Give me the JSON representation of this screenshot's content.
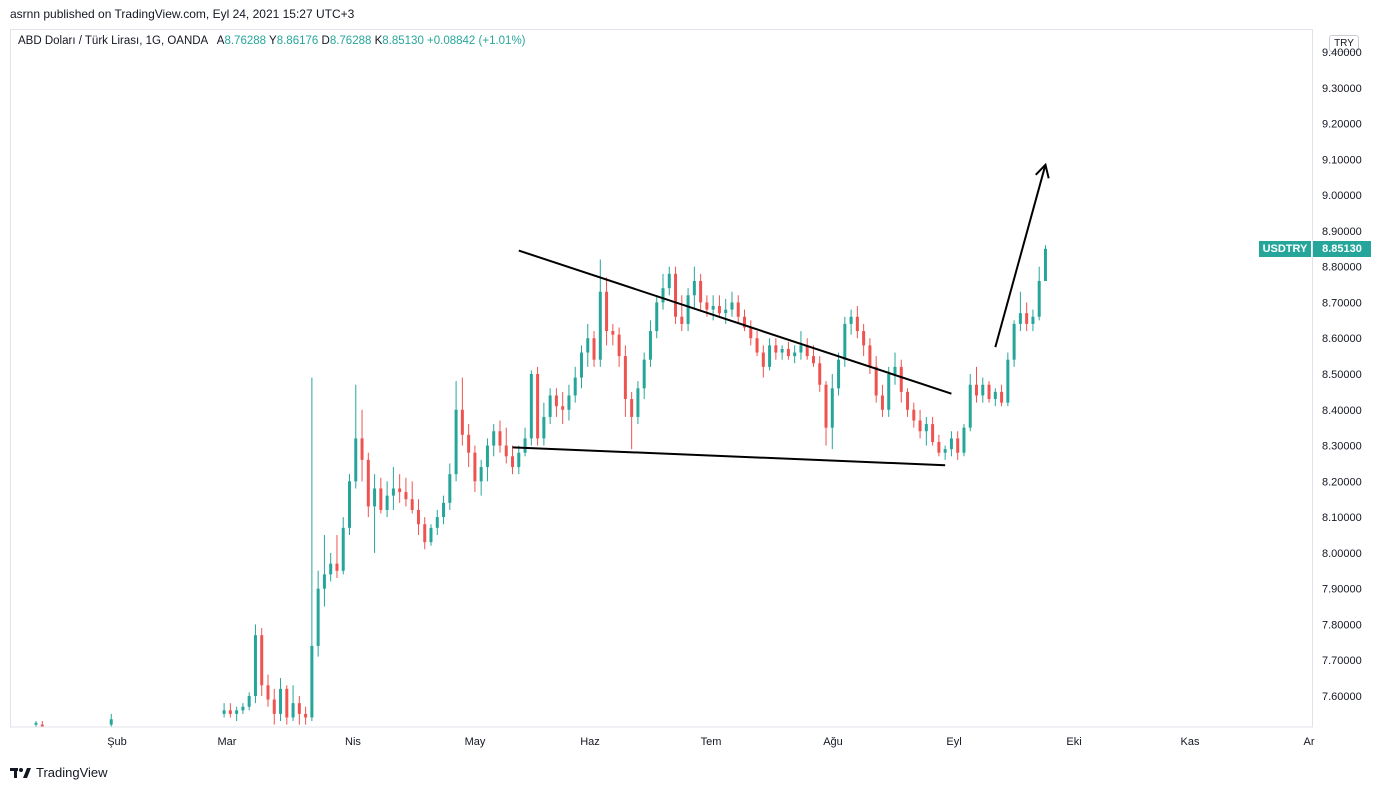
{
  "header": {
    "published": "asrnn published on TradingView.com, Eyl 24, 2021 15:27 UTC+3"
  },
  "legend": {
    "symbol": "ABD Doları / Türk Lirası, 1G, OANDA",
    "open_label": "A",
    "open": "8.76288",
    "high_label": "Y",
    "high": "8.86176",
    "low_label": "D",
    "low": "8.76288",
    "close_label": "K",
    "close": "8.85130",
    "change": "+0.08842 (+1.01%)"
  },
  "currency_button": "TRY",
  "price_badge": {
    "name": "USDTRY",
    "value": "8.85130"
  },
  "footer": {
    "brand": "TradingView"
  },
  "colors": {
    "up": "#26a69a",
    "down": "#ef5350",
    "badge": "#26a69a",
    "drawing": "#000000"
  },
  "chart_data": {
    "type": "candlestick",
    "y_ticks": [
      "9.40000",
      "9.30000",
      "9.20000",
      "9.10000",
      "9.00000",
      "8.90000",
      "8.80000",
      "8.70000",
      "8.60000",
      "8.50000",
      "8.40000",
      "8.30000",
      "8.20000",
      "8.10000",
      "8.00000",
      "7.90000",
      "7.80000",
      "7.70000",
      "7.60000"
    ],
    "x_ticks": [
      "Şub",
      "Mar",
      "Nis",
      "May",
      "Haz",
      "Tem",
      "Ağu",
      "Eyl",
      "Eki",
      "Kas",
      "Ar"
    ],
    "ylim": [
      7.52,
      9.45
    ],
    "grid": false,
    "last_price": 8.8513,
    "candles": [
      [
        0,
        7.52,
        7.53,
        7.51,
        7.525
      ],
      [
        2,
        7.52,
        7.53,
        7.51,
        7.515
      ],
      [
        24,
        7.52,
        7.55,
        7.51,
        7.535
      ],
      [
        60,
        7.55,
        7.58,
        7.54,
        7.56
      ],
      [
        62,
        7.56,
        7.58,
        7.54,
        7.55
      ],
      [
        64,
        7.55,
        7.57,
        7.53,
        7.56
      ],
      [
        66,
        7.56,
        7.58,
        7.55,
        7.57
      ],
      [
        68,
        7.57,
        7.61,
        7.56,
        7.6
      ],
      [
        70,
        7.6,
        7.8,
        7.58,
        7.77
      ],
      [
        72,
        7.77,
        7.79,
        7.6,
        7.63
      ],
      [
        74,
        7.63,
        7.66,
        7.57,
        7.59
      ],
      [
        76,
        7.59,
        7.62,
        7.52,
        7.55
      ],
      [
        78,
        7.55,
        7.65,
        7.53,
        7.62
      ],
      [
        80,
        7.62,
        7.63,
        7.52,
        7.54
      ],
      [
        82,
        7.54,
        7.63,
        7.53,
        7.58
      ],
      [
        84,
        7.58,
        7.6,
        7.52,
        7.55
      ],
      [
        86,
        7.55,
        7.57,
        7.52,
        7.54
      ],
      [
        88,
        7.54,
        8.49,
        7.53,
        7.74
      ],
      [
        90,
        7.74,
        7.95,
        7.71,
        7.9
      ],
      [
        92,
        7.9,
        8.05,
        7.85,
        7.94
      ],
      [
        94,
        7.94,
        8.0,
        7.92,
        7.97
      ],
      [
        96,
        7.97,
        8.05,
        7.93,
        7.95
      ],
      [
        98,
        7.95,
        8.1,
        7.94,
        8.07
      ],
      [
        100,
        8.07,
        8.22,
        8.05,
        8.2
      ],
      [
        102,
        8.2,
        8.47,
        8.18,
        8.32
      ],
      [
        104,
        8.32,
        8.4,
        8.2,
        8.26
      ],
      [
        106,
        8.26,
        8.28,
        8.1,
        8.13
      ],
      [
        108,
        8.13,
        8.22,
        8.0,
        8.18
      ],
      [
        110,
        8.18,
        8.21,
        8.11,
        8.12
      ],
      [
        112,
        8.12,
        8.2,
        8.1,
        8.16
      ],
      [
        114,
        8.16,
        8.24,
        8.12,
        8.18
      ],
      [
        116,
        8.18,
        8.22,
        8.14,
        8.17
      ],
      [
        118,
        8.17,
        8.21,
        8.13,
        8.15
      ],
      [
        120,
        8.15,
        8.2,
        8.11,
        8.12
      ],
      [
        122,
        8.12,
        8.15,
        8.05,
        8.08
      ],
      [
        124,
        8.08,
        8.1,
        8.01,
        8.03
      ],
      [
        126,
        8.03,
        8.08,
        8.02,
        8.07
      ],
      [
        128,
        8.07,
        8.12,
        8.05,
        8.1
      ],
      [
        130,
        8.1,
        8.16,
        8.08,
        8.14
      ],
      [
        132,
        8.14,
        8.25,
        8.12,
        8.22
      ],
      [
        134,
        8.22,
        8.48,
        8.2,
        8.4
      ],
      [
        136,
        8.4,
        8.49,
        8.3,
        8.33
      ],
      [
        138,
        8.33,
        8.36,
        8.24,
        8.28
      ],
      [
        140,
        8.28,
        8.3,
        8.17,
        8.2
      ],
      [
        142,
        8.2,
        8.26,
        8.16,
        8.24
      ],
      [
        144,
        8.24,
        8.32,
        8.2,
        8.3
      ],
      [
        146,
        8.3,
        8.36,
        8.27,
        8.34
      ],
      [
        148,
        8.34,
        8.37,
        8.28,
        8.3
      ],
      [
        150,
        8.3,
        8.35,
        8.25,
        8.27
      ],
      [
        152,
        8.27,
        8.3,
        8.22,
        8.24
      ],
      [
        154,
        8.24,
        8.3,
        8.22,
        8.28
      ],
      [
        156,
        8.28,
        8.35,
        8.27,
        8.32
      ],
      [
        158,
        8.32,
        8.51,
        8.3,
        8.5
      ],
      [
        160,
        8.5,
        8.52,
        8.3,
        8.32
      ],
      [
        162,
        8.32,
        8.42,
        8.3,
        8.38
      ],
      [
        164,
        8.38,
        8.46,
        8.36,
        8.44
      ],
      [
        166,
        8.44,
        8.46,
        8.38,
        8.41
      ],
      [
        168,
        8.41,
        8.45,
        8.36,
        8.4
      ],
      [
        170,
        8.4,
        8.47,
        8.37,
        8.44
      ],
      [
        172,
        8.44,
        8.52,
        8.42,
        8.49
      ],
      [
        174,
        8.49,
        8.58,
        8.46,
        8.56
      ],
      [
        176,
        8.56,
        8.64,
        8.52,
        8.6
      ],
      [
        178,
        8.6,
        8.62,
        8.52,
        8.54
      ],
      [
        180,
        8.54,
        8.82,
        8.52,
        8.73
      ],
      [
        182,
        8.73,
        8.77,
        8.58,
        8.62
      ],
      [
        184,
        8.62,
        8.64,
        8.58,
        8.61
      ],
      [
        186,
        8.61,
        8.63,
        8.52,
        8.55
      ],
      [
        188,
        8.55,
        8.58,
        8.38,
        8.43
      ],
      [
        190,
        8.43,
        8.45,
        8.29,
        8.38
      ],
      [
        192,
        8.38,
        8.48,
        8.36,
        8.46
      ],
      [
        194,
        8.46,
        8.56,
        8.43,
        8.54
      ],
      [
        196,
        8.54,
        8.65,
        8.52,
        8.62
      ],
      [
        198,
        8.62,
        8.72,
        8.6,
        8.7
      ],
      [
        200,
        8.7,
        8.78,
        8.68,
        8.74
      ],
      [
        202,
        8.74,
        8.8,
        8.72,
        8.78
      ],
      [
        204,
        8.78,
        8.8,
        8.64,
        8.66
      ],
      [
        206,
        8.66,
        8.72,
        8.62,
        8.64
      ],
      [
        208,
        8.64,
        8.74,
        8.62,
        8.72
      ],
      [
        210,
        8.72,
        8.8,
        8.68,
        8.76
      ],
      [
        212,
        8.76,
        8.78,
        8.68,
        8.7
      ],
      [
        214,
        8.7,
        8.72,
        8.66,
        8.68
      ],
      [
        216,
        8.68,
        8.72,
        8.65,
        8.69
      ],
      [
        218,
        8.69,
        8.72,
        8.66,
        8.67
      ],
      [
        220,
        8.67,
        8.71,
        8.64,
        8.68
      ],
      [
        222,
        8.68,
        8.73,
        8.66,
        8.7
      ],
      [
        224,
        8.7,
        8.72,
        8.64,
        8.66
      ],
      [
        226,
        8.66,
        8.68,
        8.62,
        8.63
      ],
      [
        228,
        8.63,
        8.65,
        8.58,
        8.6
      ],
      [
        230,
        8.6,
        8.62,
        8.55,
        8.56
      ],
      [
        232,
        8.56,
        8.58,
        8.49,
        8.52
      ],
      [
        234,
        8.52,
        8.6,
        8.51,
        8.58
      ],
      [
        236,
        8.58,
        8.6,
        8.54,
        8.56
      ],
      [
        238,
        8.56,
        8.58,
        8.54,
        8.57
      ],
      [
        240,
        8.57,
        8.59,
        8.54,
        8.55
      ],
      [
        242,
        8.55,
        8.58,
        8.53,
        8.56
      ],
      [
        244,
        8.56,
        8.62,
        8.54,
        8.58
      ],
      [
        246,
        8.58,
        8.6,
        8.54,
        8.55
      ],
      [
        248,
        8.55,
        8.58,
        8.52,
        8.53
      ],
      [
        250,
        8.53,
        8.55,
        8.45,
        8.47
      ],
      [
        252,
        8.47,
        8.48,
        8.3,
        8.35
      ],
      [
        254,
        8.35,
        8.5,
        8.29,
        8.46
      ],
      [
        256,
        8.46,
        8.56,
        8.44,
        8.54
      ],
      [
        258,
        8.54,
        8.66,
        8.52,
        8.64
      ],
      [
        260,
        8.64,
        8.68,
        8.61,
        8.66
      ],
      [
        262,
        8.66,
        8.69,
        8.6,
        8.62
      ],
      [
        264,
        8.62,
        8.64,
        8.55,
        8.58
      ],
      [
        266,
        8.58,
        8.6,
        8.5,
        8.52
      ],
      [
        268,
        8.52,
        8.55,
        8.42,
        8.44
      ],
      [
        270,
        8.44,
        8.47,
        8.38,
        8.4
      ],
      [
        272,
        8.4,
        8.52,
        8.38,
        8.5
      ],
      [
        274,
        8.5,
        8.56,
        8.47,
        8.52
      ],
      [
        276,
        8.52,
        8.54,
        8.42,
        8.45
      ],
      [
        278,
        8.45,
        8.46,
        8.38,
        8.4
      ],
      [
        280,
        8.4,
        8.42,
        8.35,
        8.37
      ],
      [
        282,
        8.37,
        8.4,
        8.32,
        8.34
      ],
      [
        284,
        8.34,
        8.38,
        8.3,
        8.36
      ],
      [
        286,
        8.36,
        8.38,
        8.3,
        8.31
      ],
      [
        288,
        8.31,
        8.33,
        8.27,
        8.28
      ],
      [
        290,
        8.28,
        8.3,
        8.26,
        8.29
      ],
      [
        292,
        8.29,
        8.34,
        8.27,
        8.32
      ],
      [
        294,
        8.32,
        8.34,
        8.26,
        8.28
      ],
      [
        296,
        8.28,
        8.36,
        8.27,
        8.35
      ],
      [
        298,
        8.35,
        8.5,
        8.34,
        8.47
      ],
      [
        300,
        8.47,
        8.52,
        8.42,
        8.44
      ],
      [
        302,
        8.44,
        8.49,
        8.42,
        8.47
      ],
      [
        304,
        8.47,
        8.48,
        8.42,
        8.43
      ],
      [
        306,
        8.43,
        8.46,
        8.41,
        8.45
      ],
      [
        308,
        8.45,
        8.47,
        8.41,
        8.42
      ],
      [
        310,
        8.42,
        8.56,
        8.41,
        8.54
      ],
      [
        312,
        8.54,
        8.65,
        8.52,
        8.64
      ],
      [
        314,
        8.64,
        8.73,
        8.62,
        8.67
      ],
      [
        316,
        8.67,
        8.7,
        8.62,
        8.64
      ],
      [
        318,
        8.64,
        8.68,
        8.62,
        8.66
      ],
      [
        320,
        8.66,
        8.8,
        8.65,
        8.76
      ],
      [
        322,
        8.76,
        8.86,
        8.76,
        8.85
      ]
    ],
    "drawings": {
      "upper_trendline": [
        [
          154,
          8.845
        ],
        [
          292,
          8.445
        ]
      ],
      "lower_trendline": [
        [
          152,
          8.295
        ],
        [
          290,
          8.245
        ]
      ],
      "arrow": [
        [
          306,
          8.575
        ],
        [
          322,
          9.085
        ]
      ]
    }
  }
}
